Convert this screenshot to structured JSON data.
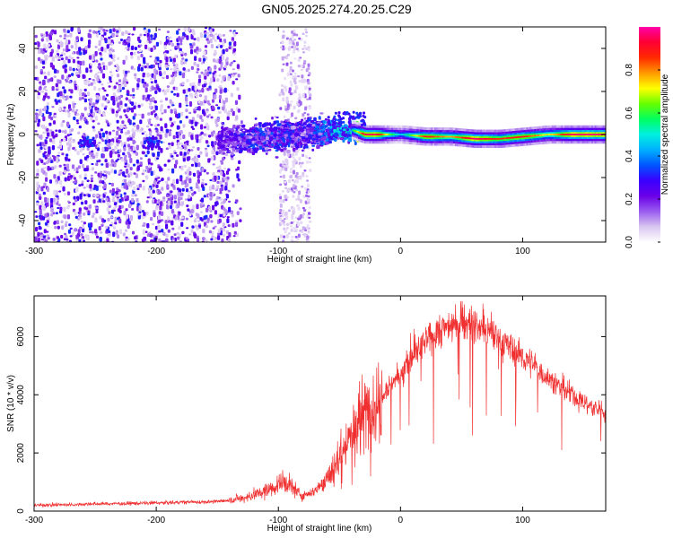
{
  "title": "GN05.2025.274.20.25.C29",
  "chart_data": [
    {
      "type": "heatmap",
      "panel": "spectrogram",
      "xlabel": "Height of straight line (km)",
      "ylabel": "Frequency (Hz)",
      "xlim": [
        -300,
        168
      ],
      "ylim": [
        -50,
        50
      ],
      "xticks": [
        -300,
        -200,
        -100,
        0,
        100
      ],
      "yticks": [
        -40,
        -20,
        0,
        20,
        40
      ],
      "colorbar": {
        "label": "Normalized spectral amplitude",
        "range": [
          0,
          1
        ],
        "ticks": [
          0.0,
          0.2,
          0.4,
          0.6,
          0.8
        ],
        "colormap": [
          "#ffffff",
          "#d9c6f0",
          "#9a5cf0",
          "#6a00e8",
          "#3a00ff",
          "#0055ff",
          "#00b0ff",
          "#00f0e0",
          "#00ff60",
          "#66ff00",
          "#ffff00",
          "#ff9900",
          "#ff2a00",
          "#ff0033",
          "#ff00aa"
        ]
      },
      "ridge": {
        "heights_km": [
          -150,
          -120,
          -100,
          -80,
          -60,
          -40,
          -30,
          -20,
          -10,
          0,
          20,
          40,
          60,
          80,
          100,
          120,
          140,
          168
        ],
        "frequency_hz": [
          -2,
          -1,
          0,
          1,
          2,
          2,
          0,
          0,
          0,
          0,
          -1,
          -1,
          -2,
          -2,
          -1,
          0,
          0,
          0
        ],
        "amplitude": [
          0.25,
          0.35,
          0.35,
          0.3,
          0.45,
          0.55,
          0.95,
          0.95,
          0.65,
          0.45,
          0.9,
          0.75,
          0.98,
          0.85,
          0.9,
          0.7,
          0.98,
          0.95
        ]
      }
    },
    {
      "type": "line",
      "panel": "snr",
      "xlabel": "Height of straight line (km)",
      "ylabel": "SNR (10 * v/v)",
      "xlim": [
        -300,
        168
      ],
      "ylim": [
        0,
        7400
      ],
      "xticks": [
        -300,
        -200,
        -100,
        0,
        100
      ],
      "yticks": [
        0,
        2000,
        4000,
        6000
      ],
      "color": "#f03030",
      "trend": {
        "x": [
          -300,
          -250,
          -200,
          -150,
          -130,
          -110,
          -95,
          -85,
          -80,
          -70,
          -60,
          -50,
          -45,
          -40,
          -30,
          -20,
          -10,
          0,
          10,
          20,
          30,
          40,
          50,
          60,
          70,
          80,
          90,
          100,
          110,
          120,
          130,
          140,
          150,
          160,
          168
        ],
        "y": [
          200,
          250,
          280,
          330,
          420,
          700,
          1000,
          700,
          500,
          700,
          1100,
          1800,
          2200,
          2700,
          3300,
          3800,
          4300,
          4700,
          5300,
          5800,
          6150,
          6400,
          6500,
          6400,
          6200,
          5900,
          5600,
          5300,
          5000,
          4600,
          4300,
          4000,
          3750,
          3500,
          3400
        ]
      }
    }
  ]
}
